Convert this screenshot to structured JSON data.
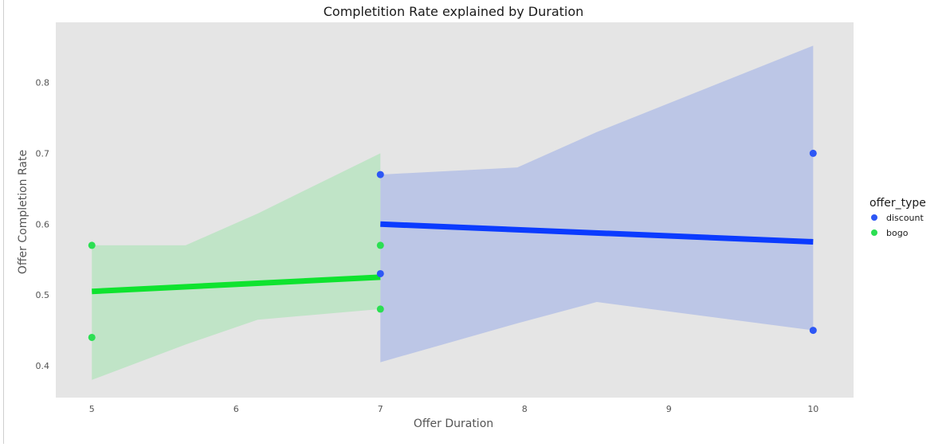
{
  "chart_data": {
    "type": "scatter",
    "title": "Completition Rate explained by Duration",
    "xlabel": "Offer Duration",
    "ylabel": "Offer Completion Rate",
    "xlim": [
      4.75,
      10.28
    ],
    "ylim": [
      0.355,
      0.885
    ],
    "xticks": [
      5,
      6,
      7,
      8,
      9,
      10
    ],
    "yticks": [
      0.4,
      0.5,
      0.6,
      0.7,
      0.8
    ],
    "grid": false,
    "background": "#e5e5e5",
    "legend": {
      "title": "offer_type",
      "placement": "right",
      "entries": [
        "discount",
        "bogo"
      ]
    },
    "series": [
      {
        "name": "discount",
        "color": "#2d57f5",
        "line_color": "#0b3bff",
        "band_color": "#aebbe6",
        "points": [
          {
            "x": 7,
            "y": 0.67
          },
          {
            "x": 7,
            "y": 0.53
          },
          {
            "x": 10,
            "y": 0.7
          },
          {
            "x": 10,
            "y": 0.45
          }
        ],
        "fit": {
          "x": [
            7,
            10
          ],
          "y": [
            0.6,
            0.575
          ]
        },
        "band": {
          "x": [
            7,
            7.95,
            8.5,
            10
          ],
          "upper": [
            0.67,
            0.68,
            0.73,
            0.852
          ],
          "lower": [
            0.405,
            0.46,
            0.49,
            0.45
          ]
        }
      },
      {
        "name": "bogo",
        "color": "#2bdf52",
        "line_color": "#0fe32f",
        "band_color": "#b3e3bc",
        "points": [
          {
            "x": 5,
            "y": 0.57
          },
          {
            "x": 5,
            "y": 0.44
          },
          {
            "x": 7,
            "y": 0.57
          },
          {
            "x": 7,
            "y": 0.48
          }
        ],
        "fit": {
          "x": [
            5,
            7
          ],
          "y": [
            0.505,
            0.525
          ]
        },
        "band": {
          "x": [
            5,
            5.65,
            6.15,
            7
          ],
          "upper": [
            0.57,
            0.57,
            0.615,
            0.7
          ],
          "lower": [
            0.38,
            0.43,
            0.465,
            0.48
          ]
        }
      }
    ]
  }
}
